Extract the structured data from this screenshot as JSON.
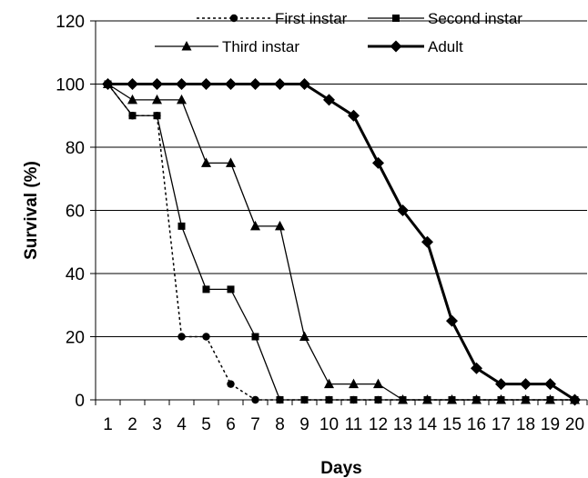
{
  "chart_data": {
    "type": "line",
    "xlabel": "Days",
    "ylabel": "Survival (%)",
    "x": [
      1,
      2,
      3,
      4,
      5,
      6,
      7,
      8,
      9,
      10,
      11,
      12,
      13,
      14,
      15,
      16,
      17,
      18,
      19,
      20
    ],
    "ylim": [
      0,
      120
    ],
    "yticks": [
      0,
      20,
      40,
      60,
      80,
      100,
      120
    ],
    "grid": true,
    "legend_position": "top",
    "series": [
      {
        "name": "First instar",
        "line": "dotted",
        "marker": "circle",
        "values": [
          100,
          90,
          90,
          20,
          20,
          5,
          0,
          0,
          0,
          0,
          0,
          0,
          0,
          0,
          0,
          0,
          0,
          0,
          0,
          0
        ]
      },
      {
        "name": "Second instar",
        "line": "thin",
        "marker": "square",
        "values": [
          100,
          90,
          90,
          55,
          35,
          35,
          20,
          0,
          0,
          0,
          0,
          0,
          0,
          0,
          0,
          0,
          0,
          0,
          0,
          0
        ]
      },
      {
        "name": "Third instar",
        "line": "thin",
        "marker": "triangle",
        "values": [
          100,
          95,
          95,
          95,
          75,
          75,
          55,
          55,
          20,
          5,
          5,
          5,
          0,
          0,
          0,
          0,
          0,
          0,
          0,
          0
        ]
      },
      {
        "name": "Adult",
        "line": "thick",
        "marker": "diamond",
        "values": [
          100,
          100,
          100,
          100,
          100,
          100,
          100,
          100,
          100,
          95,
          90,
          75,
          60,
          50,
          25,
          10,
          5,
          5,
          5,
          0
        ]
      }
    ]
  }
}
